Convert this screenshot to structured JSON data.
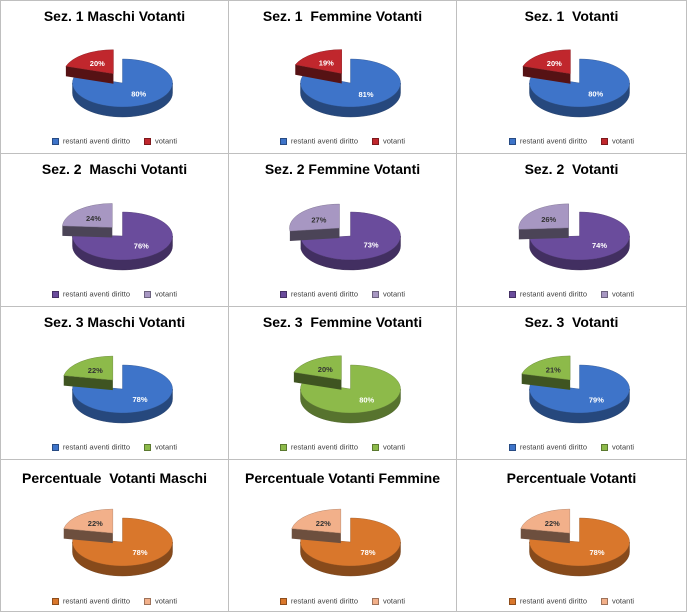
{
  "colors": {
    "blue": "#3E74C9",
    "red": "#C0272D",
    "purple": "#6A4C9C",
    "lilac": "#A797C2",
    "green": "#8DBA4A",
    "orange": "#D9772C",
    "peach": "#F2B08A"
  },
  "chart_data": [
    {
      "type": "pie",
      "title": "Sez. 1 Maschi Votanti",
      "labels": [
        "restanti aventi diritto",
        "votanti"
      ],
      "values": [
        80,
        20
      ],
      "data_labels": [
        "80%",
        "20%"
      ],
      "colors": [
        "#3E74C9",
        "#C0272D"
      ],
      "legend": "bottom"
    },
    {
      "type": "pie",
      "title": "Sez. 1  Femmine Votanti",
      "labels": [
        "restanti aventi diritto",
        "votanti"
      ],
      "values": [
        81,
        19
      ],
      "data_labels": [
        "81%",
        "19%"
      ],
      "colors": [
        "#3E74C9",
        "#C0272D"
      ],
      "legend": "bottom"
    },
    {
      "type": "pie",
      "title": "Sez. 1  Votanti",
      "labels": [
        "restanti aventi diritto",
        "votanti"
      ],
      "values": [
        80,
        20
      ],
      "data_labels": [
        "80%",
        "20%"
      ],
      "colors": [
        "#3E74C9",
        "#C0272D"
      ],
      "legend": "bottom"
    },
    {
      "type": "pie",
      "title": "Sez. 2  Maschi Votanti",
      "labels": [
        "restanti aventi diritto",
        "votanti"
      ],
      "values": [
        76,
        24
      ],
      "data_labels": [
        "76%",
        "24%"
      ],
      "colors": [
        "#6A4C9C",
        "#A797C2"
      ],
      "legend": "bottom"
    },
    {
      "type": "pie",
      "title": "Sez. 2 Femmine Votanti",
      "labels": [
        "restanti aventi diritto",
        "votanti"
      ],
      "values": [
        73,
        27
      ],
      "data_labels": [
        "73%",
        "27%"
      ],
      "colors": [
        "#6A4C9C",
        "#A797C2"
      ],
      "legend": "bottom"
    },
    {
      "type": "pie",
      "title": "Sez. 2  Votanti",
      "labels": [
        "restanti aventi diritto",
        "votanti"
      ],
      "values": [
        74,
        26
      ],
      "data_labels": [
        "74%",
        "26%"
      ],
      "colors": [
        "#6A4C9C",
        "#A797C2"
      ],
      "legend": "bottom"
    },
    {
      "type": "pie",
      "title": "Sez. 3 Maschi Votanti",
      "labels": [
        "restanti aventi diritto",
        "votanti"
      ],
      "values": [
        78,
        22
      ],
      "data_labels": [
        "78%",
        "22%"
      ],
      "colors": [
        "#3E74C9",
        "#8DBA4A"
      ],
      "legend": "bottom"
    },
    {
      "type": "pie",
      "title": "Sez. 3  Femmine Votanti",
      "labels": [
        "restanti aventi diritto",
        "votanti"
      ],
      "values": [
        80,
        20
      ],
      "data_labels": [
        "80%",
        "20%"
      ],
      "colors": [
        "#8DBA4A",
        "#8DBA4A"
      ],
      "legend": "bottom"
    },
    {
      "type": "pie",
      "title": "Sez. 3  Votanti",
      "labels": [
        "restanti aventi diritto",
        "votanti"
      ],
      "values": [
        79,
        21
      ],
      "data_labels": [
        "79%",
        "21%"
      ],
      "colors": [
        "#3E74C9",
        "#8DBA4A"
      ],
      "legend": "bottom"
    },
    {
      "type": "pie",
      "title": "Percentuale  Votanti Maschi",
      "labels": [
        "restanti aventi diritto",
        "votanti"
      ],
      "values": [
        78,
        22
      ],
      "data_labels": [
        "78%",
        "22%"
      ],
      "colors": [
        "#D9772C",
        "#F2B08A"
      ],
      "legend": "bottom"
    },
    {
      "type": "pie",
      "title": "Percentuale Votanti Femmine",
      "labels": [
        "restanti aventi diritto",
        "votanti"
      ],
      "values": [
        78,
        22
      ],
      "data_labels": [
        "78%",
        "22%"
      ],
      "colors": [
        "#D9772C",
        "#F2B08A"
      ],
      "legend": "bottom"
    },
    {
      "type": "pie",
      "title": "Percentuale Votanti",
      "labels": [
        "restanti aventi diritto",
        "votanti"
      ],
      "values": [
        78,
        22
      ],
      "data_labels": [
        "78%",
        "22%"
      ],
      "colors": [
        "#D9772C",
        "#F2B08A"
      ],
      "legend": "bottom"
    }
  ]
}
